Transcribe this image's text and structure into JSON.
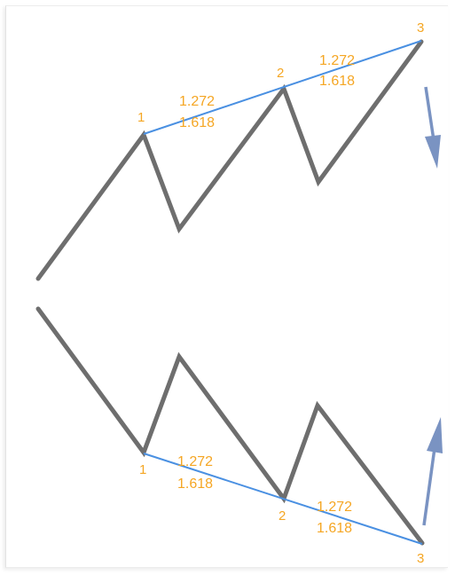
{
  "colors": {
    "zigzag": "#6e6e6e",
    "trendline": "#4a90e2",
    "label": "#f5a623",
    "arrow": "#7a93c2"
  },
  "top_pattern": {
    "point_1": "1",
    "point_2": "2",
    "point_3": "3",
    "ratio_a_1": "1.272",
    "ratio_a_2": "1.618",
    "ratio_b_1": "1.272",
    "ratio_b_2": "1.618",
    "arrow": "down-arrow-icon"
  },
  "bottom_pattern": {
    "point_1": "1",
    "point_2": "2",
    "point_3": "3",
    "ratio_a_1": "1.272",
    "ratio_a_2": "1.618",
    "ratio_b_1": "1.272",
    "ratio_b_2": "1.618",
    "arrow": "up-arrow-icon"
  }
}
